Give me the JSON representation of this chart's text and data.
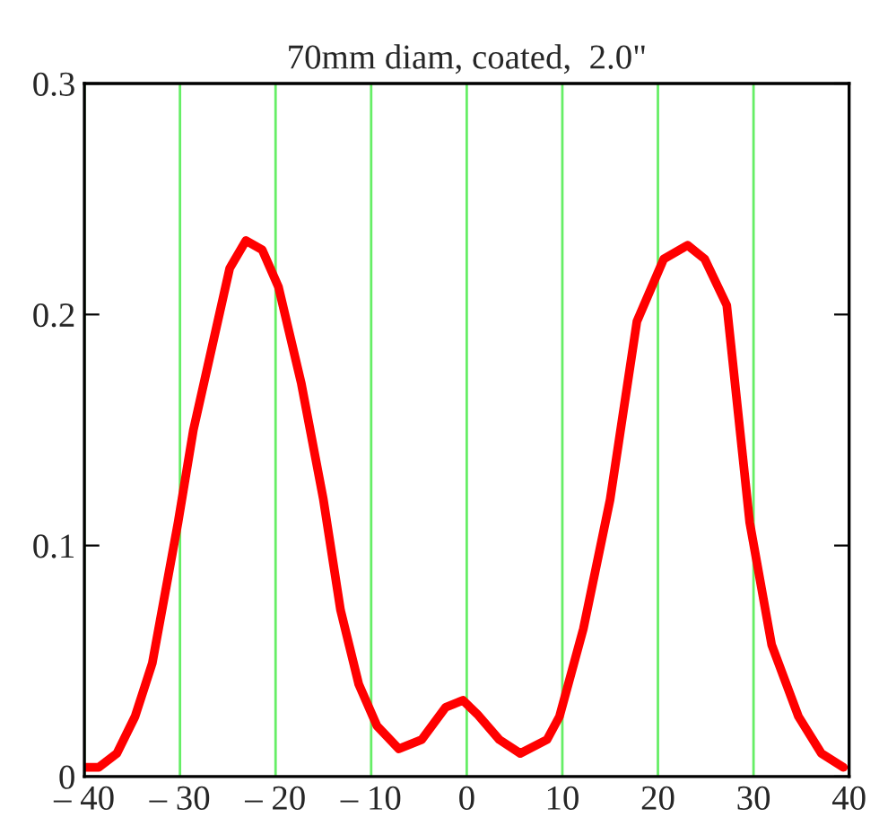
{
  "chart_data": {
    "type": "line",
    "title": "70mm diam, coated,  2.0\"",
    "xlim": [
      -40,
      40
    ],
    "ylim": [
      0,
      0.3
    ],
    "xticks": [
      {
        "value": -40,
        "label": "– 40"
      },
      {
        "value": -30,
        "label": "– 30"
      },
      {
        "value": -20,
        "label": "– 20"
      },
      {
        "value": -10,
        "label": "– 10"
      },
      0,
      10,
      20,
      30,
      40
    ],
    "yticks": [
      0,
      0.1,
      0.2,
      0.3
    ],
    "grid": "x",
    "marker": "none",
    "line_style": "solid",
    "legend": false,
    "series": [
      {
        "color": "#ff0000",
        "x": [
          -40,
          -38.5,
          -36.6,
          -34.7,
          -32.9,
          -30.2,
          -28.6,
          -26.7,
          -24.8,
          -23.1,
          -21.4,
          -19.7,
          -17.3,
          -15,
          -13.2,
          -11.3,
          -9.4,
          -7.1,
          -4.7,
          -2.2,
          -0.4,
          1.1,
          3.4,
          5.6,
          8.4,
          9.7,
          12.2,
          15,
          17.8,
          20.6,
          23.1,
          24.9,
          27.2,
          29.6,
          31.9,
          34.7,
          37.1,
          39.4
        ],
        "values": [
          0.004,
          0.004,
          0.01,
          0.026,
          0.049,
          0.11,
          0.15,
          0.185,
          0.22,
          0.232,
          0.228,
          0.212,
          0.17,
          0.12,
          0.072,
          0.04,
          0.022,
          0.012,
          0.016,
          0.03,
          0.033,
          0.027,
          0.016,
          0.01,
          0.016,
          0.026,
          0.064,
          0.12,
          0.197,
          0.224,
          0.23,
          0.224,
          0.204,
          0.11,
          0.057,
          0.026,
          0.01,
          0.004
        ]
      }
    ]
  }
}
